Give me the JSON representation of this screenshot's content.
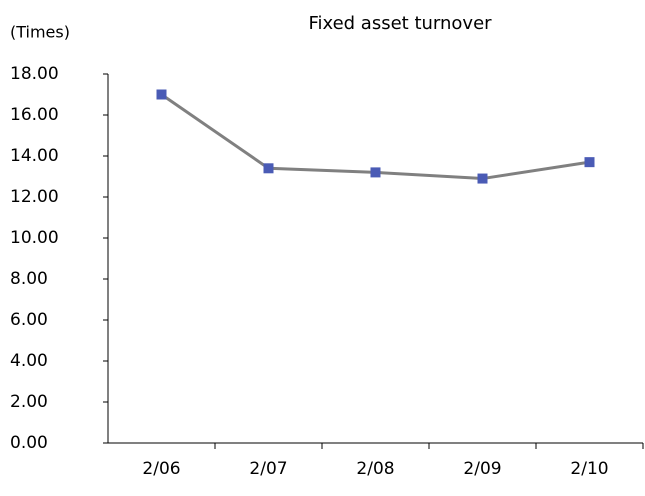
{
  "chart_data": {
    "type": "line",
    "title": "Fixed asset turnover",
    "y_label": "(Times)",
    "categories": [
      "2/06",
      "2/07",
      "2/08",
      "2/09",
      "2/10"
    ],
    "series": [
      {
        "name": "Fixed asset turnover",
        "color": "#808080",
        "marker_color": "#4a5bb5",
        "values": [
          17.0,
          13.4,
          13.2,
          12.9,
          13.7
        ]
      }
    ],
    "ylim": [
      0,
      18
    ],
    "yticks": [
      {
        "value": 0,
        "label": "0.00"
      },
      {
        "value": 2,
        "label": "2.00"
      },
      {
        "value": 4,
        "label": "4.00"
      },
      {
        "value": 6,
        "label": "6.00"
      },
      {
        "value": 8,
        "label": "8.00"
      },
      {
        "value": 10,
        "label": "10.00"
      },
      {
        "value": 12,
        "label": "12.00"
      },
      {
        "value": 14,
        "label": "14.00"
      },
      {
        "value": 16,
        "label": "16.00"
      },
      {
        "value": 18,
        "label": "18.00"
      }
    ],
    "grid": false
  }
}
